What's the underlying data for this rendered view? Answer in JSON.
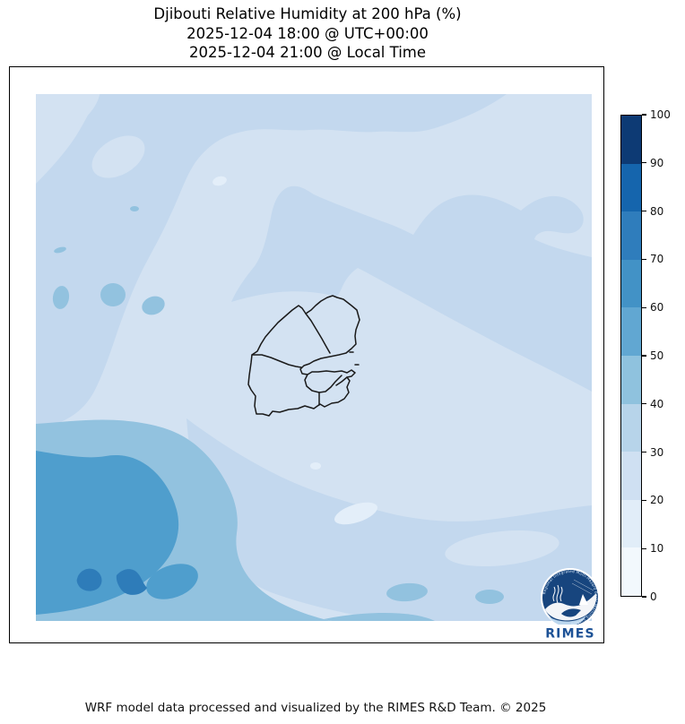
{
  "title": {
    "line1": "Djibouti Relative Humidity at 200 hPa (%)",
    "line2": "2025-12-04 18:00 @ UTC+00:00",
    "line3": "2025-12-04 21:00 @ Local Time"
  },
  "footer": {
    "credit": "WRF model data processed and visualized by the RIMES R&D Team. © 2025"
  },
  "colorbar": {
    "ticks": [
      0,
      10,
      20,
      30,
      40,
      50,
      60,
      70,
      80,
      90,
      100
    ],
    "band_colors_top_to_bottom": [
      "#0d3a74",
      "#1565ad",
      "#2f7dbc",
      "#4292c6",
      "#61a7d2",
      "#8fc2de",
      "#b7d4ea",
      "#cfe0f2",
      "#e1edf8",
      "#f2f8fd"
    ]
  },
  "map": {
    "band_fill_colors": {
      "rh10": "#e3eef9",
      "rh20": "#d3e2f2",
      "rh30": "#c3d8ee",
      "rh40": "#92c2df",
      "rh50": "#4f9ecd",
      "rh60": "#2e7cb9"
    },
    "outline_color": "#1a1a1a",
    "country_outline": "Djibouti national and regional administrative boundaries"
  },
  "logo": {
    "label": "RIMES",
    "ring_text": "Regional Integrated Multi-Hazard Early Warning System",
    "circle_color": "#17457e",
    "text_color": "#1d5296"
  },
  "chart_data": {
    "type": "heatmap",
    "title": "Djibouti Relative Humidity at 200 hPa (%)",
    "valid_time_utc": "2025-12-04 18:00 @ UTC+00:00",
    "valid_time_local": "2025-12-04 21:00 @ Local Time",
    "variable": "Relative Humidity",
    "pressure_level_hPa": 200,
    "units": "%",
    "model": "WRF",
    "colormap": "Blues (discrete, 10 bands)",
    "contour_levels": [
      0,
      10,
      20,
      30,
      40,
      50,
      60,
      70,
      80,
      90,
      100
    ],
    "colorbar_range": [
      0,
      100
    ],
    "legend_position": "right vertical colorbar",
    "overlay": "Djibouti national and regional administrative boundaries (black), country centered in domain",
    "value_regions": [
      {
        "area": "most of domain: center, east and north around Djibouti",
        "rh_percent": [
          20,
          30
        ]
      },
      {
        "area": "northwest quadrant and west-central strip",
        "rh_percent": [
          30,
          40
        ]
      },
      {
        "area": "diagonal band from center-top toward east edge",
        "rh_percent": [
          30,
          40
        ]
      },
      {
        "area": "lower-middle sweeping to bottom-right band",
        "rh_percent": [
          30,
          40
        ]
      },
      {
        "area": "southwest quadrant mass and bottom-center blobs",
        "rh_percent": [
          40,
          50
        ]
      },
      {
        "area": "inner southwest core",
        "rh_percent": [
          50,
          60
        ]
      },
      {
        "area": "two small spots at far southwest",
        "rh_percent": [
          60,
          70
        ]
      },
      {
        "area": "small bright ovals (bottom-center, top-left corner)",
        "rh_percent": [
          10,
          20
        ]
      }
    ]
  }
}
